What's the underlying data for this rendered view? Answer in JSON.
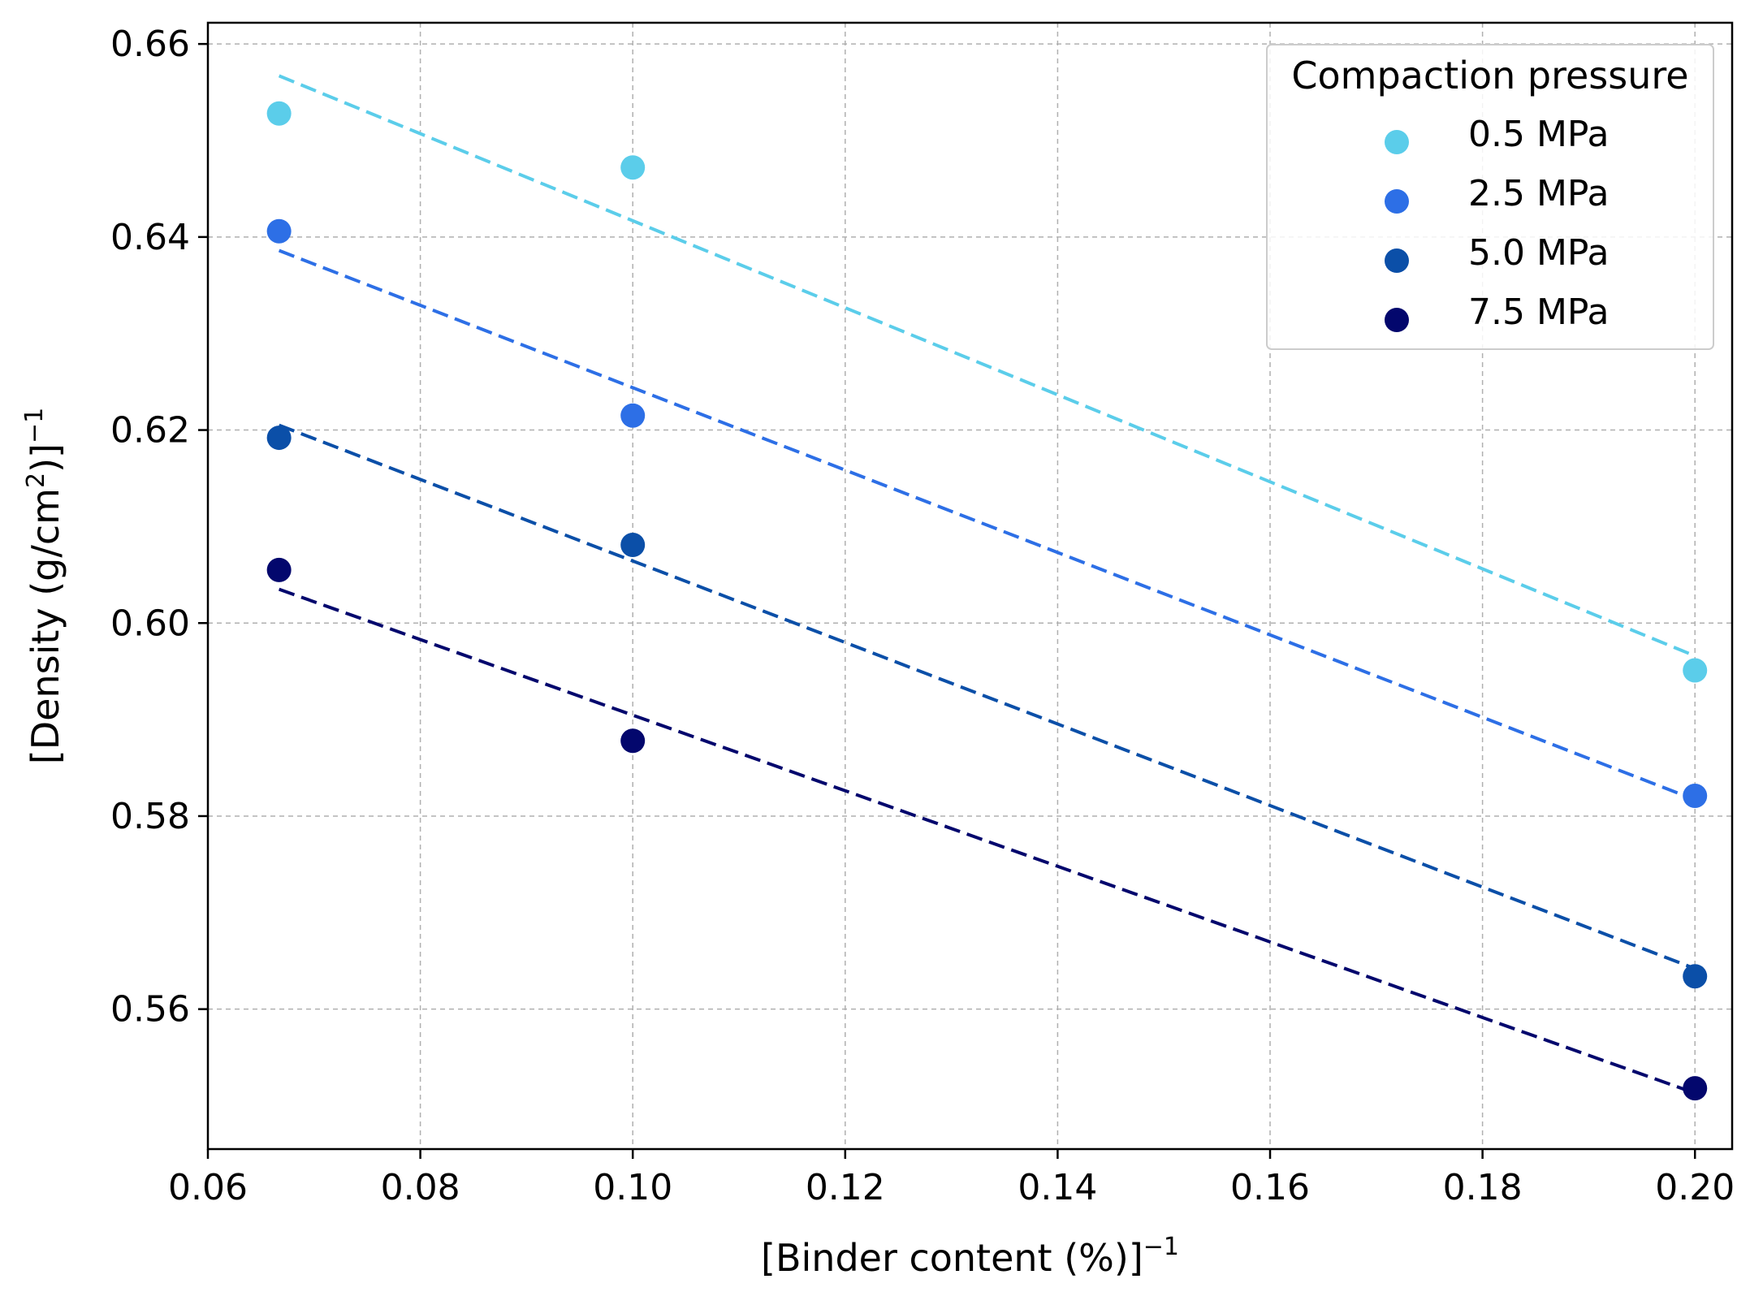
{
  "chart_data": {
    "type": "scatter",
    "title": "",
    "xlabel": "[Binder content (%)]",
    "xlabel_exp": "−1",
    "ylabel_parts": {
      "prefix": "[Density (g/cm",
      "sup": "2",
      "suffix": ")]",
      "exp": "−1"
    },
    "xlim": [
      0.06,
      0.2035
    ],
    "ylim": [
      0.5455,
      0.6622
    ],
    "x_ticks": [
      0.06,
      0.08,
      0.1,
      0.12,
      0.14,
      0.16,
      0.18,
      0.2
    ],
    "x_tick_labels": [
      "0.06",
      "0.08",
      "0.10",
      "0.12",
      "0.14",
      "0.16",
      "0.18",
      "0.20"
    ],
    "y_ticks": [
      0.56,
      0.58,
      0.6,
      0.62,
      0.64,
      0.66
    ],
    "y_tick_labels": [
      "0.56",
      "0.58",
      "0.60",
      "0.62",
      "0.64",
      "0.66"
    ],
    "grid": true,
    "x": [
      0.0667,
      0.1,
      0.2
    ],
    "legend": {
      "title": "Compaction pressure",
      "position": "top-right"
    },
    "series": [
      {
        "name": "0.5 MPa",
        "color": "#5bcdea",
        "values": [
          0.6528,
          0.6472,
          0.5951
        ],
        "fit": {
          "x": [
            0.0667,
            0.2
          ],
          "y": [
            0.6567,
            0.5966
          ]
        }
      },
      {
        "name": "2.5 MPa",
        "color": "#2d6fe6",
        "values": [
          0.6406,
          0.6215,
          0.5821
        ],
        "fit": {
          "x": [
            0.0667,
            0.2
          ],
          "y": [
            0.6386,
            0.5817
          ]
        }
      },
      {
        "name": "5.0 MPa",
        "color": "#0b4fa8",
        "values": [
          0.6192,
          0.6081,
          0.5634
        ],
        "fit": {
          "x": [
            0.0667,
            0.2
          ],
          "y": [
            0.6205,
            0.5642
          ]
        }
      },
      {
        "name": "7.5 MPa",
        "color": "#03076d",
        "values": [
          0.6055,
          0.5878,
          0.5518
        ],
        "fit": {
          "x": [
            0.0667,
            0.2
          ],
          "y": [
            0.6035,
            0.5513
          ]
        }
      }
    ]
  }
}
